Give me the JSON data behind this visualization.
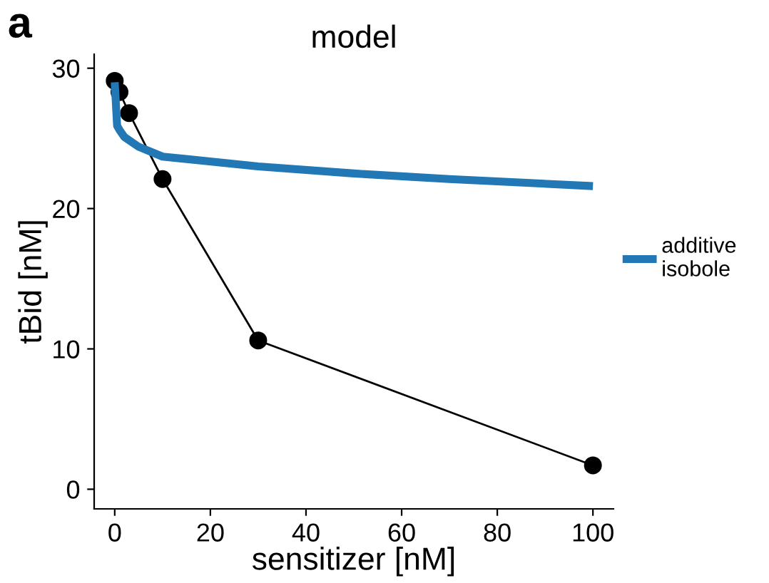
{
  "chart_data": {
    "type": "line",
    "title": "model",
    "xlabel": "sensitizer [nM]",
    "ylabel": "tBid [nM]",
    "annotations": [
      "a"
    ],
    "xlim": [
      -4.3,
      104.3
    ],
    "xticks": [
      0,
      20,
      40,
      60,
      80,
      100
    ],
    "ylim": [
      -1.4,
      31
    ],
    "yticks": [
      0,
      10,
      20,
      30
    ],
    "grid": false,
    "legend": "right",
    "series": [
      {
        "color": "#000000",
        "marker": "circle",
        "x": [
          0,
          1,
          3,
          10,
          30,
          100
        ],
        "values": [
          29.1,
          28.3,
          26.8,
          22.1,
          10.6,
          1.7
        ]
      },
      {
        "name": "additive\nisobole",
        "color": "#2178b4",
        "marker": "none",
        "x": [
          0,
          0.5,
          1,
          2,
          5,
          10,
          30,
          50,
          70,
          100
        ],
        "values": [
          29.0,
          25.9,
          25.6,
          25.1,
          24.4,
          23.7,
          23.0,
          22.5,
          22.1,
          21.6
        ]
      }
    ]
  }
}
